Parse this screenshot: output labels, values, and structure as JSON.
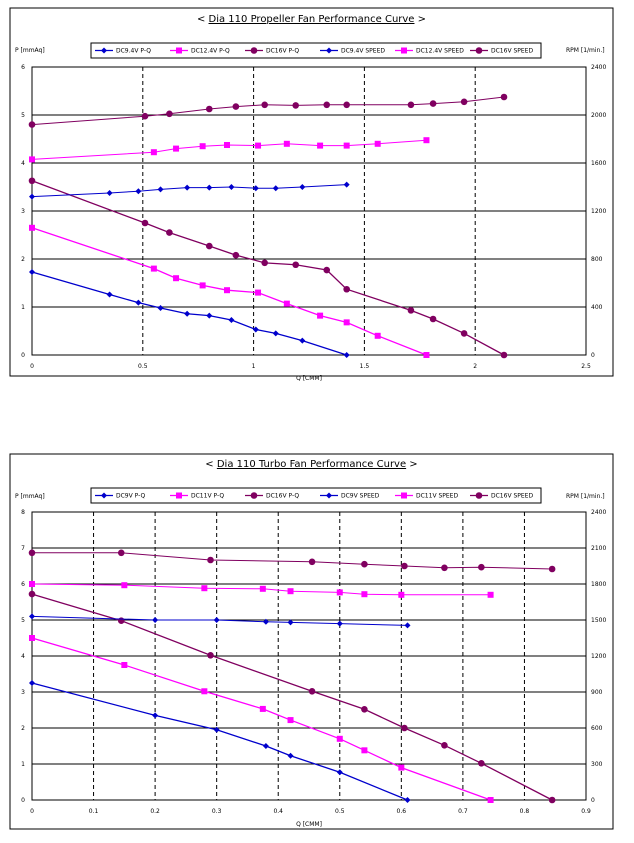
{
  "chart_data": [
    {
      "type": "line",
      "title": "< Dia 110 Propeller Fan Performance Curve >",
      "title_underlined": "Dia 110 Propeller Fan Performance Curve",
      "ylabel": "P [mmAq]",
      "y2label": "RPM [1/min.]",
      "xlabel": "Q [CMM]",
      "xlim": [
        0,
        2.5
      ],
      "ylim": [
        0,
        6
      ],
      "y2lim": [
        0,
        2400
      ],
      "xticks": [
        "0",
        "0.5",
        "1",
        "1.5",
        "2",
        "2.5"
      ],
      "yticks": [
        "0",
        "1",
        "2",
        "3",
        "4",
        "5",
        "6"
      ],
      "y2ticks": [
        "0",
        "400",
        "800",
        "1200",
        "1600",
        "2000",
        "2400"
      ],
      "grid": true,
      "legend_position": "top",
      "series": [
        {
          "name": "DC9.4V P-Q",
          "axis": "left",
          "color": "#0000cc",
          "marker": "diamond",
          "x": [
            0,
            0.35,
            0.48,
            0.58,
            0.7,
            0.8,
            0.9,
            1.01,
            1.1,
            1.22,
            1.42
          ],
          "y": [
            1.73,
            1.26,
            1.09,
            0.98,
            0.86,
            0.82,
            0.73,
            0.53,
            0.45,
            0.3,
            0.0
          ]
        },
        {
          "name": "DC12.4V P-Q",
          "axis": "left",
          "color": "#ff00ff",
          "marker": "square",
          "x": [
            0,
            0.55,
            0.65,
            0.77,
            0.88,
            1.02,
            1.15,
            1.3,
            1.42,
            1.56,
            1.78
          ],
          "y": [
            2.65,
            1.8,
            1.6,
            1.45,
            1.35,
            1.3,
            1.07,
            0.82,
            0.68,
            0.4,
            0.0
          ]
        },
        {
          "name": "DC16V P-Q",
          "axis": "left",
          "color": "#800060",
          "marker": "circle",
          "x": [
            0,
            0.51,
            0.62,
            0.8,
            0.92,
            1.05,
            1.19,
            1.33,
            1.42,
            1.71,
            1.81,
            1.95,
            2.13
          ],
          "y": [
            3.63,
            2.75,
            2.55,
            2.27,
            2.08,
            1.92,
            1.88,
            1.77,
            1.37,
            0.93,
            0.75,
            0.45,
            0.0
          ]
        },
        {
          "name": "DC9.4V SPEED",
          "axis": "right",
          "color": "#0000cc",
          "marker": "diamond",
          "x": [
            0,
            0.35,
            0.48,
            0.58,
            0.7,
            0.8,
            0.9,
            1.01,
            1.1,
            1.22,
            1.42
          ],
          "y": [
            1320,
            1350,
            1365,
            1380,
            1395,
            1395,
            1400,
            1390,
            1390,
            1400,
            1420
          ]
        },
        {
          "name": "DC12.4V SPEED",
          "axis": "right",
          "color": "#ff00ff",
          "marker": "square",
          "x": [
            0,
            0.55,
            0.65,
            0.77,
            0.88,
            1.02,
            1.15,
            1.3,
            1.42,
            1.56,
            1.78
          ],
          "y": [
            1630,
            1690,
            1720,
            1740,
            1750,
            1745,
            1760,
            1745,
            1745,
            1760,
            1790
          ]
        },
        {
          "name": "DC16V SPEED",
          "axis": "right",
          "color": "#800060",
          "marker": "circle",
          "x": [
            0,
            0.51,
            0.62,
            0.8,
            0.92,
            1.05,
            1.19,
            1.33,
            1.42,
            1.71,
            1.81,
            1.95,
            2.13
          ],
          "y": [
            1920,
            1990,
            2010,
            2050,
            2070,
            2085,
            2080,
            2085,
            2085,
            2085,
            2095,
            2110,
            2150
          ]
        }
      ]
    },
    {
      "type": "line",
      "title": "< Dia 110 Turbo Fan Performance Curve >",
      "title_underlined": "Dia 110 Turbo Fan Performance Curve",
      "ylabel": "P [mmAq]",
      "y2label": "RPM [1/min.]",
      "xlabel": "Q [CMM]",
      "xlim": [
        0,
        0.9
      ],
      "ylim": [
        0,
        8
      ],
      "y2lim": [
        0,
        2400
      ],
      "xticks": [
        "0",
        "0.1",
        "0.2",
        "0.3",
        "0.4",
        "0.5",
        "0.6",
        "0.7",
        "0.8",
        "0.9"
      ],
      "yticks": [
        "0",
        "1",
        "2",
        "3",
        "4",
        "5",
        "6",
        "7",
        "8"
      ],
      "y2ticks": [
        "0",
        "300",
        "600",
        "900",
        "1200",
        "1500",
        "1800",
        "2100",
        "2400"
      ],
      "grid": true,
      "legend_position": "top",
      "series": [
        {
          "name": "DC9V P-Q",
          "axis": "left",
          "color": "#0000cc",
          "marker": "diamond",
          "x": [
            0,
            0.2,
            0.3,
            0.38,
            0.42,
            0.5,
            0.61
          ],
          "y": [
            3.25,
            2.35,
            1.95,
            1.5,
            1.23,
            0.77,
            0.0
          ]
        },
        {
          "name": "DC11V P-Q",
          "axis": "left",
          "color": "#ff00ff",
          "marker": "square",
          "x": [
            0,
            0.15,
            0.28,
            0.375,
            0.42,
            0.5,
            0.54,
            0.6,
            0.745
          ],
          "y": [
            4.5,
            3.75,
            3.02,
            2.53,
            2.22,
            1.7,
            1.38,
            0.9,
            0.0
          ]
        },
        {
          "name": "DC16V P-Q",
          "axis": "left",
          "color": "#800060",
          "marker": "circle",
          "x": [
            0,
            0.145,
            0.29,
            0.455,
            0.54,
            0.605,
            0.67,
            0.73,
            0.845
          ],
          "y": [
            5.72,
            4.98,
            4.02,
            3.02,
            2.52,
            2.0,
            1.52,
            1.02,
            0.0
          ]
        },
        {
          "name": "DC9V SPEED",
          "axis": "right",
          "color": "#0000cc",
          "marker": "diamond",
          "x": [
            0,
            0.2,
            0.3,
            0.38,
            0.42,
            0.5,
            0.61
          ],
          "y": [
            1530,
            1500,
            1500,
            1485,
            1480,
            1470,
            1455
          ]
        },
        {
          "name": "DC11V SPEED",
          "axis": "right",
          "color": "#ff00ff",
          "marker": "square",
          "x": [
            0,
            0.15,
            0.28,
            0.375,
            0.42,
            0.5,
            0.54,
            0.6,
            0.745
          ],
          "y": [
            1800,
            1790,
            1765,
            1760,
            1740,
            1730,
            1715,
            1710,
            1710
          ]
        },
        {
          "name": "DC16V SPEED",
          "axis": "right",
          "color": "#800060",
          "marker": "circle",
          "x": [
            0,
            0.145,
            0.29,
            0.455,
            0.54,
            0.605,
            0.67,
            0.73,
            0.845
          ],
          "y": [
            2060,
            2060,
            2000,
            1985,
            1965,
            1950,
            1935,
            1940,
            1925
          ]
        }
      ]
    }
  ]
}
